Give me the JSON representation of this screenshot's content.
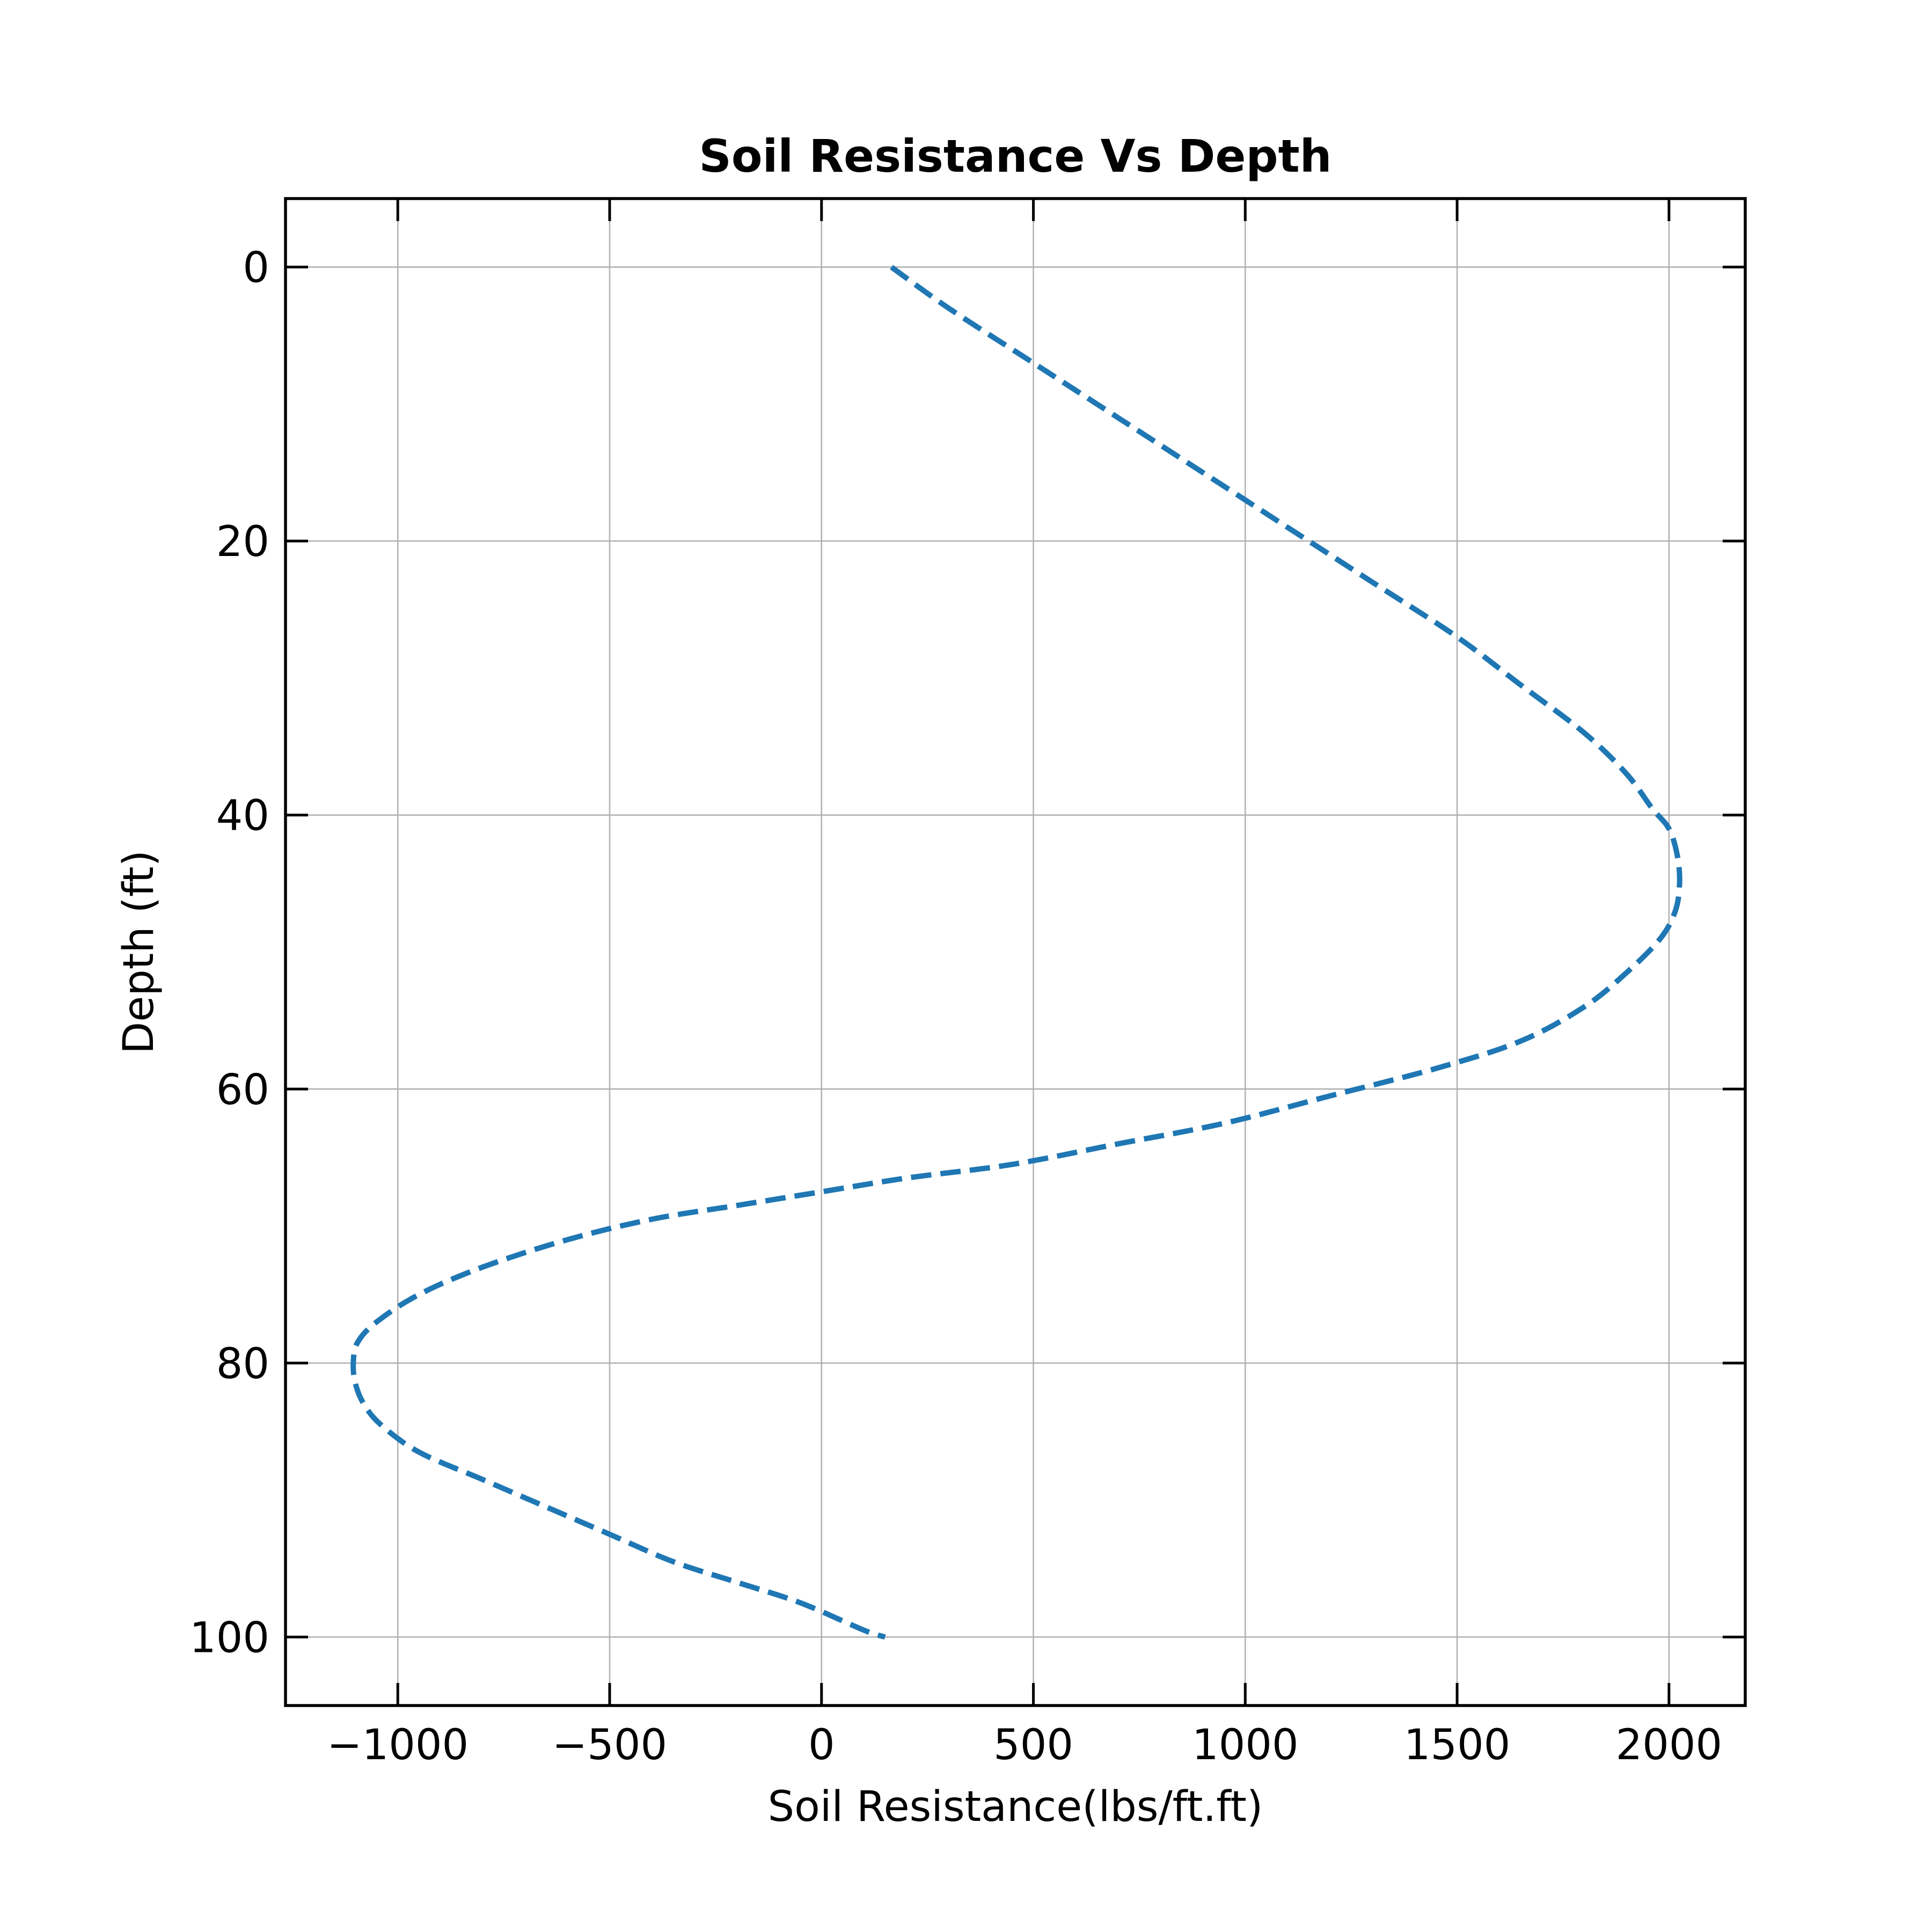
{
  "chart_data": {
    "type": "line",
    "title": "Soil Resistance Vs Depth",
    "xlabel": "Soil Resistance(lbs/ft.ft)",
    "ylabel": "Depth (ft)",
    "xlim": [
      -1265,
      2180
    ],
    "ylim": [
      105,
      -5
    ],
    "y_inverted": true,
    "grid": true,
    "xticks": [
      -1000,
      -500,
      0,
      500,
      1000,
      1500,
      2000
    ],
    "xtick_labels": [
      "−1000",
      "−500",
      "0",
      "500",
      "1000",
      "1500",
      "2000"
    ],
    "yticks": [
      0,
      20,
      40,
      60,
      80,
      100
    ],
    "ytick_labels": [
      "0",
      "20",
      "40",
      "60",
      "80",
      "100"
    ],
    "series": [
      {
        "color": "#1f77b4",
        "linestyle": "dashed",
        "x": [
          165,
          300,
          500,
          700,
          900,
          1100,
          1300,
          1500,
          1650,
          1800,
          1900,
          1960,
          2000,
          2020,
          2025,
          2015,
          1980,
          1900,
          1800,
          1650,
          1450,
          1200,
          950,
          700,
          450,
          200,
          0,
          -200,
          -400,
          -600,
          -800,
          -950,
          -1050,
          -1095,
          -1105,
          -1100,
          -1080,
          -1040,
          -950,
          -800,
          -650,
          -500,
          -350,
          -200,
          -50,
          100,
          150
        ],
        "y": [
          0,
          3,
          7,
          11,
          15,
          19,
          23,
          27,
          30.5,
          34,
          37,
          39.5,
          41,
          43,
          45,
          47,
          49,
          51.5,
          54,
          56.5,
          58.5,
          60.5,
          62.5,
          64,
          65.5,
          66.5,
          67.5,
          68.5,
          69.5,
          71,
          73,
          75,
          77,
          78.5,
          80,
          81.5,
          83,
          84.5,
          86.5,
          88.5,
          90.5,
          92.5,
          94.5,
          96,
          97.5,
          99.5,
          100
        ]
      }
    ]
  }
}
